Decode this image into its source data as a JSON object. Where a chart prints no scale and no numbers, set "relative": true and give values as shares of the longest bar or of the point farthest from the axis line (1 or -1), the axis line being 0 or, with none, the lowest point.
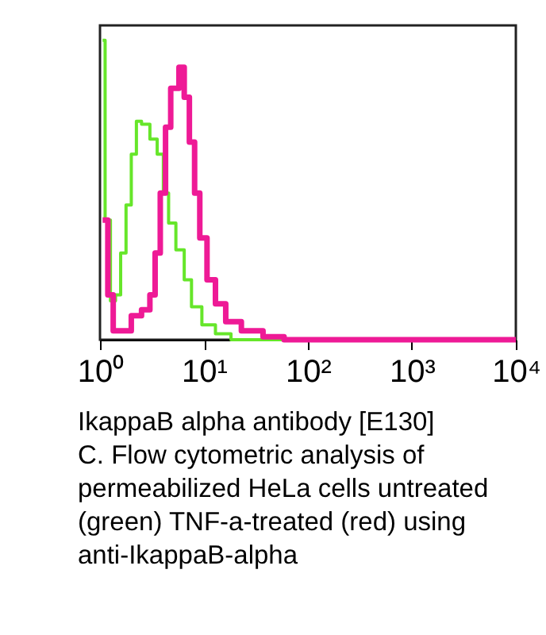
{
  "chart_data": {
    "type": "step",
    "relative": true,
    "log": "x",
    "grid": false,
    "marker": "none",
    "line_style": "solid",
    "xlim": [
      1,
      10000
    ],
    "xticks": [
      {
        "value": 1,
        "label": "10⁰"
      },
      {
        "value": 10,
        "label": "10¹"
      },
      {
        "value": 100,
        "label": "10²"
      },
      {
        "value": 1000,
        "label": "10³"
      },
      {
        "value": 10000,
        "label": "10⁴"
      }
    ],
    "series": [
      {
        "color": "#66e62a",
        "x": [
          1.06,
          1.12,
          1.26,
          1.41,
          1.58,
          1.78,
          2.0,
          2.24,
          2.51,
          3.02,
          3.55,
          4.07,
          4.57,
          5.37,
          6.46,
          7.59,
          9.55,
          12.9,
          18.2,
          10000
        ],
        "values": [
          1.0,
          0.4,
          0.13,
          0.15,
          0.29,
          0.45,
          0.62,
          0.73,
          0.72,
          0.67,
          0.62,
          0.49,
          0.39,
          0.3,
          0.2,
          0.11,
          0.05,
          0.02,
          0.0,
          0.0
        ]
      },
      {
        "color": "#ee1a96",
        "x": [
          1.06,
          1.19,
          1.34,
          1.58,
          2.0,
          2.51,
          3.02,
          3.39,
          3.8,
          4.27,
          4.79,
          5.75,
          6.46,
          7.24,
          8.13,
          9.12,
          10.7,
          12.9,
          16.2,
          22.9,
          37,
          59,
          10000
        ],
        "values": [
          0.4,
          0.15,
          0.03,
          0.03,
          0.08,
          0.1,
          0.15,
          0.29,
          0.49,
          0.71,
          0.84,
          0.91,
          0.81,
          0.66,
          0.49,
          0.34,
          0.2,
          0.12,
          0.06,
          0.03,
          0.01,
          0.0,
          0.0
        ]
      }
    ],
    "annotations": [
      "IkappaB alpha antibody [E130]",
      "C. Flow cytometric analysis of",
      "permeabilized HeLa cells untreated",
      "(green) TNF-a-treated (red) using",
      "anti-IkappaB-alpha"
    ]
  }
}
